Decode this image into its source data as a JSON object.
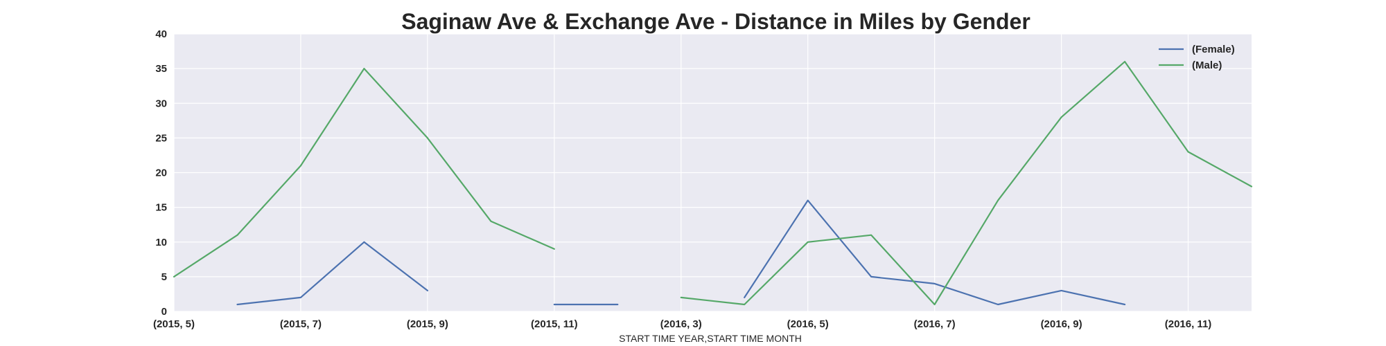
{
  "chart_data": {
    "type": "line",
    "title": "Saginaw Ave & Exchange Ave - Distance in Miles by Gender",
    "xlabel": "START TIME YEAR,START TIME MONTH",
    "ylabel": "",
    "ylim": [
      0,
      40
    ],
    "y_ticks": [
      0,
      5,
      10,
      15,
      20,
      25,
      30,
      35,
      40
    ],
    "x_tick_labels": [
      "(2015, 5)",
      "(2015, 7)",
      "(2015, 9)",
      "(2015, 11)",
      "(2016, 3)",
      "(2016, 5)",
      "(2016, 7)",
      "(2016, 9)",
      "(2016, 11)"
    ],
    "categories": [
      "(2015, 5)",
      "(2015, 6)",
      "(2015, 7)",
      "(2015, 8)",
      "(2015, 9)",
      "(2015, 10)",
      "(2015, 11)",
      "(2015, 12)",
      "(2016, 3)",
      "(2016, 4)",
      "(2016, 5)",
      "(2016, 6)",
      "(2016, 7)",
      "(2016, 8)",
      "(2016, 9)",
      "(2016, 10)",
      "(2016, 11)",
      "(2016, 12)"
    ],
    "series": [
      {
        "name": "(Female)",
        "color": "#4c72b0",
        "values": [
          null,
          1,
          2,
          10,
          3,
          null,
          1,
          1,
          null,
          2,
          16,
          5,
          4,
          1,
          3,
          1,
          null,
          null
        ]
      },
      {
        "name": "(Male)",
        "color": "#55a868",
        "values": [
          5,
          11,
          21,
          35,
          25,
          13,
          9,
          null,
          2,
          1,
          10,
          11,
          1,
          16,
          28,
          36,
          23,
          18
        ]
      }
    ],
    "grid": true,
    "legend_position": "top-right",
    "plot_background": "#eaeaf2",
    "grid_color": "#ffffff"
  }
}
